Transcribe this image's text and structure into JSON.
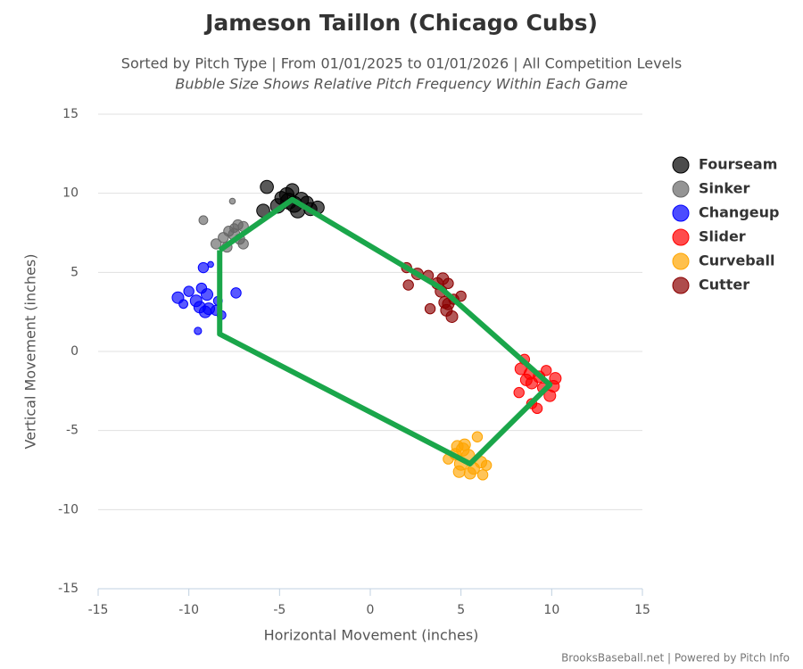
{
  "chart_data": {
    "type": "scatter",
    "title": "Jameson Taillon (Chicago Cubs)",
    "subtitle": "Sorted by Pitch Type | From 01/01/2025 to 01/01/2026 | All Competition Levels",
    "subtitle2": "Bubble Size Shows Relative Pitch Frequency Within Each Game",
    "x_label": "Horizontal Movement (inches)",
    "y_label": "Vertical Movement (inches)",
    "credit": "BrooksBaseball.net | Powered by Pitch Info",
    "xlim": [
      -15,
      15
    ],
    "ylim": [
      -15,
      15
    ],
    "xticks": [
      -15,
      -10,
      -5,
      0,
      5,
      10,
      15
    ],
    "yticks": [
      -15,
      -10,
      -5,
      0,
      5,
      10,
      15
    ],
    "grid": true,
    "legend": "right",
    "series": [
      {
        "name": "Fourseam",
        "color": "#000000",
        "x": [
          -5.7,
          -4.3,
          -4.6,
          -4.9,
          -5.1,
          -4.2,
          -3.8,
          -3.5,
          -2.9,
          -5.9,
          -4.0,
          -3.3,
          -4.5
        ],
        "y": [
          10.4,
          10.2,
          9.9,
          9.7,
          9.2,
          9.3,
          9.6,
          9.4,
          9.1,
          8.9,
          8.9,
          9.0,
          9.5
        ],
        "sizes": [
          6,
          6,
          7,
          6,
          7,
          8,
          7,
          6,
          6,
          6,
          7,
          6,
          8
        ]
      },
      {
        "name": "Sinker",
        "color": "#666666",
        "x": [
          -7.6,
          -9.2,
          -7.3,
          -7.0,
          -7.8,
          -7.5,
          -8.1,
          -7.2,
          -8.5,
          -7.0,
          -7.9,
          -7.5
        ],
        "y": [
          9.5,
          8.3,
          8.0,
          7.9,
          7.6,
          7.4,
          7.2,
          7.1,
          6.8,
          6.8,
          6.6,
          7.8
        ],
        "sizes": [
          1,
          3,
          4,
          4,
          4,
          5,
          4,
          4,
          4,
          4,
          4,
          3
        ]
      },
      {
        "name": "Changeup",
        "color": "#0000ff",
        "x": [
          -9.2,
          -8.8,
          -10.0,
          -9.3,
          -9.0,
          -9.6,
          -7.4,
          -10.6,
          -9.4,
          -8.9,
          -9.1,
          -8.5,
          -8.2,
          -9.5,
          -8.4,
          -10.3
        ],
        "y": [
          5.3,
          5.5,
          3.8,
          4.0,
          3.6,
          3.2,
          3.7,
          3.4,
          2.8,
          2.7,
          2.5,
          2.6,
          2.3,
          1.3,
          3.2,
          3.0
        ],
        "sizes": [
          4,
          1,
          4,
          4,
          5,
          5,
          4,
          5,
          5,
          5,
          5,
          4,
          3,
          2,
          3,
          3
        ]
      },
      {
        "name": "Slider",
        "color": "#ff0000",
        "x": [
          8.5,
          8.3,
          8.8,
          8.6,
          9.3,
          9.7,
          10.2,
          10.1,
          9.9,
          9.5,
          8.2,
          8.9,
          9.2,
          8.9
        ],
        "y": [
          -0.5,
          -1.1,
          -1.4,
          -1.8,
          -1.6,
          -1.2,
          -1.7,
          -2.2,
          -2.8,
          -2.3,
          -2.6,
          -3.3,
          -3.6,
          -2.0
        ],
        "sizes": [
          4,
          5,
          5,
          5,
          5,
          4,
          5,
          5,
          5,
          4,
          4,
          4,
          4,
          5
        ]
      },
      {
        "name": "Curveball",
        "color": "#ffa500",
        "x": [
          4.8,
          5.2,
          5.9,
          4.7,
          5.4,
          4.3,
          5.0,
          6.1,
          6.4,
          4.9,
          5.5,
          6.2,
          5.7,
          5.1
        ],
        "y": [
          -6.0,
          -5.9,
          -5.4,
          -6.5,
          -6.6,
          -6.8,
          -7.1,
          -7.0,
          -7.2,
          -7.6,
          -7.7,
          -7.8,
          -7.4,
          -6.2
        ],
        "sizes": [
          5,
          5,
          4,
          5,
          6,
          4,
          6,
          5,
          4,
          5,
          5,
          4,
          5,
          6
        ]
      },
      {
        "name": "Cutter",
        "color": "#8b0000",
        "x": [
          2.0,
          2.6,
          2.1,
          3.2,
          3.7,
          4.0,
          4.3,
          3.9,
          4.1,
          4.6,
          5.0,
          3.3,
          4.2,
          4.5,
          4.3
        ],
        "y": [
          5.3,
          4.9,
          4.2,
          4.8,
          4.3,
          4.6,
          4.3,
          3.8,
          3.1,
          3.3,
          3.5,
          2.7,
          2.6,
          2.2,
          3.0
        ],
        "sizes": [
          4,
          5,
          4,
          4,
          5,
          5,
          4,
          5,
          5,
          4,
          4,
          4,
          5,
          5,
          5
        ]
      }
    ],
    "outline": {
      "color": "#1aa64a",
      "x": [
        -8.3,
        -4.3,
        3.9,
        9.9,
        5.5,
        -8.3,
        -8.3
      ],
      "y": [
        6.4,
        9.6,
        4.0,
        -2.1,
        -7.1,
        1.1,
        6.4
      ]
    }
  }
}
